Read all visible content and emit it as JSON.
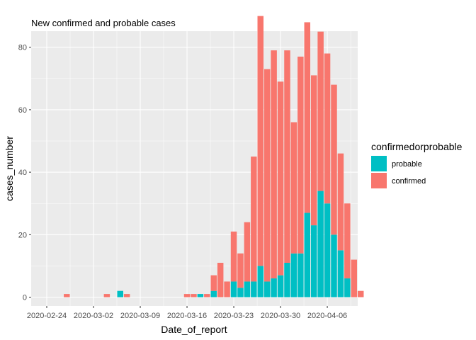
{
  "chart_data": {
    "type": "bar",
    "stacked": true,
    "title": "New confirmed and probable cases",
    "xlabel": "Date_of_report",
    "ylabel": "cases_number",
    "ylim": [
      0,
      85
    ],
    "y_ticks": [
      0,
      20,
      40,
      60,
      80
    ],
    "x_tick_labels": [
      "2020-02-24",
      "2020-03-02",
      "2020-03-09",
      "2020-03-16",
      "2020-03-23",
      "2020-03-30",
      "2020-04-06"
    ],
    "x_start_date": "2020-02-24",
    "grid": true,
    "legend": {
      "title": "confirmedorprobable",
      "position": "right"
    },
    "dates": [
      "2020-02-24",
      "2020-02-25",
      "2020-02-26",
      "2020-02-27",
      "2020-02-28",
      "2020-02-29",
      "2020-03-01",
      "2020-03-02",
      "2020-03-03",
      "2020-03-04",
      "2020-03-05",
      "2020-03-06",
      "2020-03-07",
      "2020-03-08",
      "2020-03-09",
      "2020-03-10",
      "2020-03-11",
      "2020-03-12",
      "2020-03-13",
      "2020-03-14",
      "2020-03-15",
      "2020-03-16",
      "2020-03-17",
      "2020-03-18",
      "2020-03-19",
      "2020-03-20",
      "2020-03-21",
      "2020-03-22",
      "2020-03-23",
      "2020-03-24",
      "2020-03-25",
      "2020-03-26",
      "2020-03-27",
      "2020-03-28",
      "2020-03-29",
      "2020-03-30",
      "2020-03-31",
      "2020-04-01",
      "2020-04-02",
      "2020-04-03",
      "2020-04-04",
      "2020-04-05",
      "2020-04-06",
      "2020-04-07",
      "2020-04-08",
      "2020-04-09",
      "2020-04-10",
      "2020-04-11"
    ],
    "series": [
      {
        "name": "probable",
        "color": "#00BFC4",
        "values": [
          0,
          0,
          0,
          0,
          0,
          0,
          0,
          0,
          0,
          0,
          0,
          2,
          0,
          0,
          0,
          0,
          0,
          0,
          0,
          0,
          0,
          0,
          0,
          1,
          0,
          2,
          0,
          0,
          5,
          3,
          5,
          5,
          10,
          5,
          6,
          7,
          11,
          14,
          14,
          27,
          23,
          34,
          30,
          20,
          15,
          6,
          0,
          0
        ]
      },
      {
        "name": "confirmed",
        "color": "#F8766D",
        "values": [
          0,
          0,
          0,
          1,
          0,
          0,
          0,
          0,
          0,
          1,
          0,
          0,
          1,
          0,
          0,
          0,
          0,
          0,
          0,
          0,
          0,
          1,
          1,
          0,
          1,
          5,
          11,
          5,
          16,
          11,
          19,
          40,
          80,
          68,
          73,
          62,
          68,
          42,
          63,
          61,
          48,
          51,
          48,
          48,
          31,
          24,
          12,
          2
        ]
      }
    ]
  }
}
